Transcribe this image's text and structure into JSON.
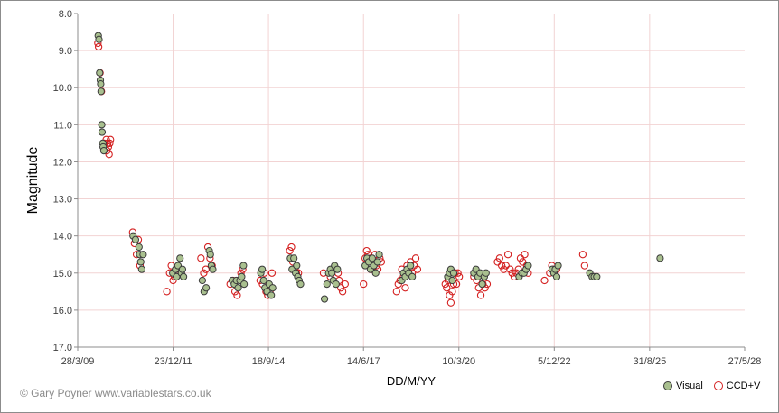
{
  "chart_data": {
    "type": "scatter",
    "xlabel": "DD/M/YY",
    "ylabel": "Magnitude",
    "x_tick_labels": [
      "28/3/09",
      "23/12/11",
      "18/9/14",
      "14/6/17",
      "10/3/20",
      "5/12/22",
      "31/8/25",
      "27/5/28"
    ],
    "x_tick_years": [
      2009.24,
      2011.98,
      2014.72,
      2017.45,
      2020.19,
      2022.93,
      2025.67,
      2028.4
    ],
    "xlim": [
      2009.24,
      2028.4
    ],
    "y_tick_labels": [
      "8.0",
      "9.0",
      "10.0",
      "11.0",
      "12.0",
      "13.0",
      "14.0",
      "15.0",
      "16.0",
      "17.0"
    ],
    "ylim": [
      8.0,
      17.0
    ],
    "y_reversed": true,
    "legend_position": "bottom-right",
    "colors": {
      "visual_fill": "#a9c08f",
      "visual_edge": "#3a3a3a",
      "ccd_edge": "#d42020",
      "grid": "#f2d3d3"
    },
    "series": [
      {
        "name": "Visual",
        "style": "filled",
        "points": [
          [
            2009.83,
            8.6
          ],
          [
            2009.85,
            8.7
          ],
          [
            2009.87,
            9.6
          ],
          [
            2009.89,
            9.8
          ],
          [
            2009.9,
            9.9
          ],
          [
            2009.91,
            10.1
          ],
          [
            2009.93,
            11.0
          ],
          [
            2009.94,
            11.2
          ],
          [
            2009.96,
            11.5
          ],
          [
            2009.97,
            11.6
          ],
          [
            2009.99,
            11.7
          ],
          [
            2010.83,
            14.0
          ],
          [
            2010.9,
            14.1
          ],
          [
            2011.0,
            14.3
          ],
          [
            2011.02,
            14.5
          ],
          [
            2011.05,
            14.7
          ],
          [
            2011.08,
            14.9
          ],
          [
            2011.12,
            14.5
          ],
          [
            2011.97,
            15.0
          ],
          [
            2012.05,
            14.9
          ],
          [
            2012.08,
            15.1
          ],
          [
            2012.12,
            14.8
          ],
          [
            2012.18,
            14.6
          ],
          [
            2012.22,
            15.0
          ],
          [
            2012.25,
            14.9
          ],
          [
            2012.28,
            15.1
          ],
          [
            2012.82,
            15.2
          ],
          [
            2012.87,
            15.5
          ],
          [
            2012.93,
            15.4
          ],
          [
            2013.02,
            14.4
          ],
          [
            2013.05,
            14.5
          ],
          [
            2013.08,
            14.8
          ],
          [
            2013.12,
            14.9
          ],
          [
            2013.68,
            15.2
          ],
          [
            2013.74,
            15.3
          ],
          [
            2013.8,
            15.2
          ],
          [
            2013.85,
            15.4
          ],
          [
            2013.9,
            15.2
          ],
          [
            2013.95,
            15.1
          ],
          [
            2014.0,
            14.8
          ],
          [
            2014.02,
            15.3
          ],
          [
            2014.5,
            15.0
          ],
          [
            2014.54,
            14.9
          ],
          [
            2014.58,
            15.2
          ],
          [
            2014.62,
            15.4
          ],
          [
            2014.68,
            15.5
          ],
          [
            2014.74,
            15.3
          ],
          [
            2014.8,
            15.6
          ],
          [
            2014.84,
            15.4
          ],
          [
            2015.35,
            14.6
          ],
          [
            2015.4,
            14.9
          ],
          [
            2015.45,
            14.6
          ],
          [
            2015.5,
            15.0
          ],
          [
            2015.53,
            14.8
          ],
          [
            2015.56,
            15.1
          ],
          [
            2015.6,
            15.2
          ],
          [
            2015.64,
            15.3
          ],
          [
            2016.33,
            15.7
          ],
          [
            2016.4,
            15.3
          ],
          [
            2016.45,
            15.0
          ],
          [
            2016.5,
            14.9
          ],
          [
            2016.54,
            15.0
          ],
          [
            2016.58,
            15.2
          ],
          [
            2016.62,
            14.8
          ],
          [
            2016.66,
            15.3
          ],
          [
            2016.7,
            14.9
          ],
          [
            2017.5,
            14.8
          ],
          [
            2017.55,
            14.6
          ],
          [
            2017.6,
            14.7
          ],
          [
            2017.65,
            14.9
          ],
          [
            2017.7,
            14.6
          ],
          [
            2017.75,
            14.8
          ],
          [
            2017.8,
            15.0
          ],
          [
            2017.85,
            14.7
          ],
          [
            2017.9,
            14.5
          ],
          [
            2018.55,
            15.2
          ],
          [
            2018.6,
            15.0
          ],
          [
            2018.65,
            15.1
          ],
          [
            2018.7,
            14.9
          ],
          [
            2018.75,
            15.0
          ],
          [
            2018.8,
            14.8
          ],
          [
            2018.85,
            15.1
          ],
          [
            2019.87,
            15.1
          ],
          [
            2019.92,
            15.0
          ],
          [
            2019.96,
            14.9
          ],
          [
            2020.0,
            15.2
          ],
          [
            2020.04,
            15.0
          ],
          [
            2020.62,
            15.0
          ],
          [
            2020.68,
            14.9
          ],
          [
            2020.74,
            15.1
          ],
          [
            2020.8,
            15.0
          ],
          [
            2020.86,
            15.3
          ],
          [
            2020.92,
            15.1
          ],
          [
            2020.97,
            15.0
          ],
          [
            2021.92,
            15.1
          ],
          [
            2022.0,
            15.0
          ],
          [
            2022.06,
            15.0
          ],
          [
            2022.12,
            14.9
          ],
          [
            2022.18,
            14.8
          ],
          [
            2022.87,
            14.9
          ],
          [
            2022.92,
            15.0
          ],
          [
            2022.96,
            14.9
          ],
          [
            2023.0,
            15.1
          ],
          [
            2023.04,
            14.8
          ],
          [
            2023.95,
            15.0
          ],
          [
            2024.02,
            15.1
          ],
          [
            2024.08,
            15.1
          ],
          [
            2024.15,
            15.1
          ],
          [
            2025.97,
            14.6
          ]
        ]
      },
      {
        "name": "CCD+V",
        "style": "open",
        "points": [
          [
            2009.82,
            8.8
          ],
          [
            2009.84,
            8.9
          ],
          [
            2009.88,
            9.6
          ],
          [
            2009.92,
            10.1
          ],
          [
            2010.0,
            11.5
          ],
          [
            2010.03,
            11.6
          ],
          [
            2010.06,
            11.4
          ],
          [
            2010.08,
            11.7
          ],
          [
            2010.1,
            11.5
          ],
          [
            2010.12,
            11.6
          ],
          [
            2010.14,
            11.8
          ],
          [
            2010.16,
            11.5
          ],
          [
            2010.18,
            11.4
          ],
          [
            2010.82,
            13.9
          ],
          [
            2010.87,
            14.2
          ],
          [
            2010.93,
            14.5
          ],
          [
            2010.98,
            14.1
          ],
          [
            2011.03,
            14.8
          ],
          [
            2011.8,
            15.5
          ],
          [
            2011.88,
            15.0
          ],
          [
            2011.93,
            14.8
          ],
          [
            2011.98,
            15.2
          ],
          [
            2012.02,
            15.1
          ],
          [
            2012.15,
            14.9
          ],
          [
            2012.78,
            14.6
          ],
          [
            2012.86,
            15.0
          ],
          [
            2012.92,
            14.9
          ],
          [
            2012.98,
            14.3
          ],
          [
            2013.04,
            14.6
          ],
          [
            2013.1,
            14.8
          ],
          [
            2013.62,
            15.3
          ],
          [
            2013.7,
            15.2
          ],
          [
            2013.76,
            15.5
          ],
          [
            2013.82,
            15.6
          ],
          [
            2013.88,
            15.3
          ],
          [
            2013.93,
            15.0
          ],
          [
            2013.98,
            14.9
          ],
          [
            2014.48,
            15.2
          ],
          [
            2014.55,
            15.3
          ],
          [
            2014.6,
            15.0
          ],
          [
            2014.65,
            15.5
          ],
          [
            2014.7,
            15.6
          ],
          [
            2014.76,
            15.5
          ],
          [
            2014.82,
            15.0
          ],
          [
            2015.33,
            14.4
          ],
          [
            2015.38,
            14.3
          ],
          [
            2015.42,
            14.7
          ],
          [
            2015.48,
            14.9
          ],
          [
            2015.52,
            15.0
          ],
          [
            2015.58,
            15.0
          ],
          [
            2016.3,
            15.0
          ],
          [
            2016.5,
            15.1
          ],
          [
            2016.72,
            15.0
          ],
          [
            2016.75,
            15.2
          ],
          [
            2016.8,
            15.4
          ],
          [
            2016.85,
            15.5
          ],
          [
            2016.92,
            15.3
          ],
          [
            2017.45,
            15.3
          ],
          [
            2017.5,
            14.6
          ],
          [
            2017.54,
            14.4
          ],
          [
            2017.58,
            14.5
          ],
          [
            2017.62,
            14.8
          ],
          [
            2017.66,
            14.6
          ],
          [
            2017.7,
            14.9
          ],
          [
            2017.74,
            14.7
          ],
          [
            2017.78,
            14.5
          ],
          [
            2017.82,
            14.8
          ],
          [
            2017.86,
            14.9
          ],
          [
            2017.92,
            14.6
          ],
          [
            2017.96,
            14.7
          ],
          [
            2018.4,
            15.5
          ],
          [
            2018.45,
            15.3
          ],
          [
            2018.5,
            15.2
          ],
          [
            2018.55,
            14.9
          ],
          [
            2018.6,
            15.1
          ],
          [
            2018.65,
            15.4
          ],
          [
            2018.7,
            14.8
          ],
          [
            2018.75,
            15.0
          ],
          [
            2018.8,
            14.7
          ],
          [
            2018.85,
            15.0
          ],
          [
            2018.9,
            14.8
          ],
          [
            2018.95,
            14.6
          ],
          [
            2019.0,
            14.9
          ],
          [
            2019.8,
            15.3
          ],
          [
            2019.84,
            15.4
          ],
          [
            2019.88,
            15.2
          ],
          [
            2019.92,
            15.6
          ],
          [
            2019.96,
            15.8
          ],
          [
            2020.0,
            15.5
          ],
          [
            2020.04,
            15.3
          ],
          [
            2020.08,
            15.0
          ],
          [
            2020.12,
            15.3
          ],
          [
            2020.16,
            15.0
          ],
          [
            2020.2,
            15.1
          ],
          [
            2020.62,
            15.1
          ],
          [
            2020.7,
            15.2
          ],
          [
            2020.76,
            15.4
          ],
          [
            2020.82,
            15.6
          ],
          [
            2020.88,
            15.3
          ],
          [
            2020.94,
            15.4
          ],
          [
            2021.0,
            15.3
          ],
          [
            2021.3,
            14.7
          ],
          [
            2021.36,
            14.6
          ],
          [
            2021.42,
            14.8
          ],
          [
            2021.48,
            14.9
          ],
          [
            2021.54,
            14.8
          ],
          [
            2021.6,
            14.5
          ],
          [
            2021.66,
            14.9
          ],
          [
            2021.72,
            15.0
          ],
          [
            2021.78,
            15.1
          ],
          [
            2021.84,
            15.0
          ],
          [
            2021.9,
            14.9
          ],
          [
            2021.96,
            14.6
          ],
          [
            2022.02,
            14.7
          ],
          [
            2022.08,
            14.5
          ],
          [
            2022.14,
            14.8
          ],
          [
            2022.18,
            15.0
          ],
          [
            2022.65,
            15.2
          ],
          [
            2022.8,
            15.0
          ],
          [
            2022.86,
            14.8
          ],
          [
            2022.9,
            14.9
          ],
          [
            2022.95,
            15.0
          ],
          [
            2023.0,
            14.9
          ],
          [
            2023.75,
            14.5
          ],
          [
            2023.8,
            14.8
          ]
        ]
      }
    ]
  },
  "footer": {
    "copyright": "© Gary Poyner  www.variablestars.co.uk",
    "legend_visual": "Visual",
    "legend_ccd": "CCD+V"
  }
}
